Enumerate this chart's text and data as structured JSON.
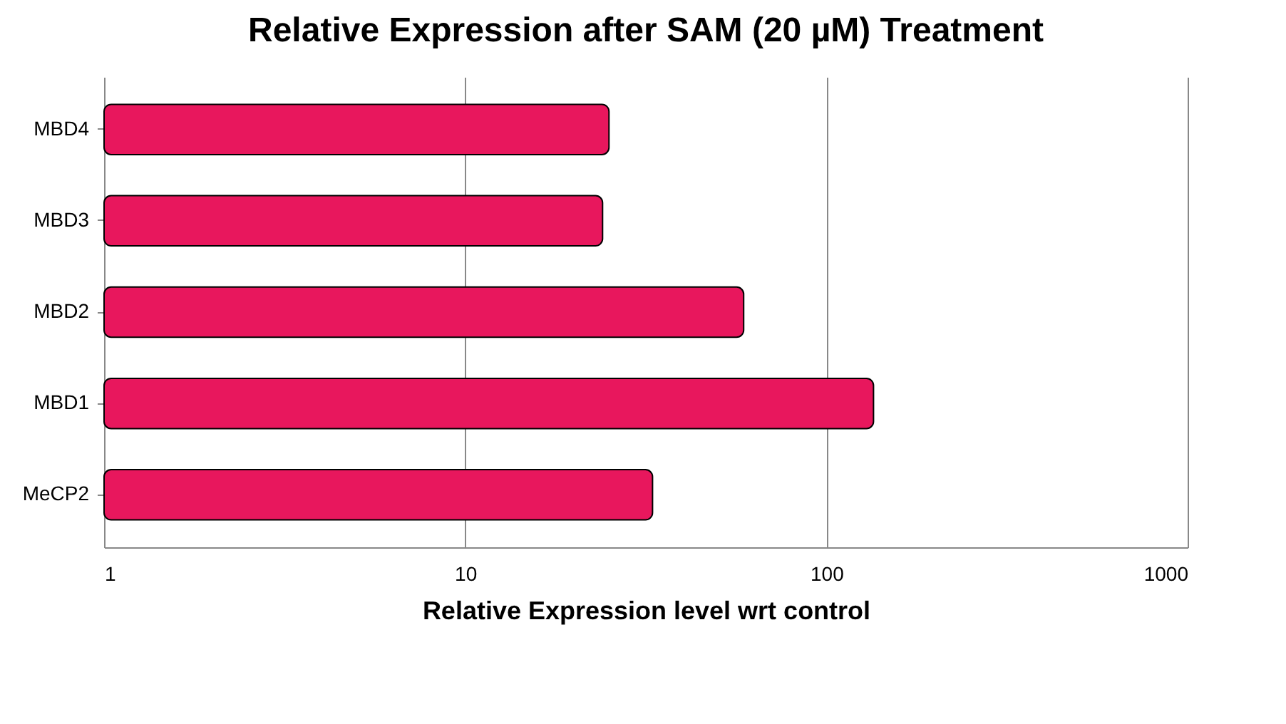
{
  "chart_data": {
    "type": "bar",
    "orientation": "horizontal",
    "title": "Relative Expression after SAM (20 µM) Treatment",
    "xlabel": "Relative Expression level wrt control",
    "categories": [
      "MBD4",
      "MBD3",
      "MBD2",
      "MBD1",
      "MeCP2"
    ],
    "values": [
      25,
      24,
      59,
      135,
      33
    ],
    "color": "#e8175d",
    "log": "x",
    "xlim": [
      1,
      1000
    ],
    "xticks": [
      1,
      10,
      100,
      1000
    ],
    "grid": "x"
  }
}
